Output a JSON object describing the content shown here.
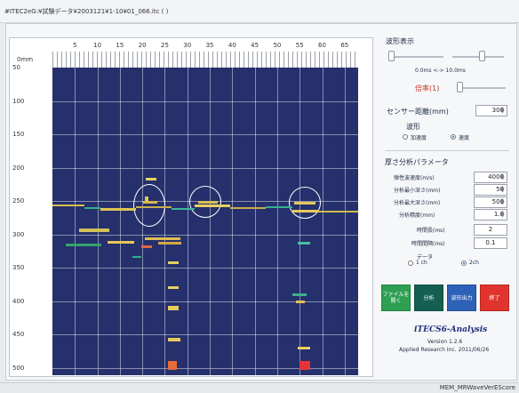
{
  "window_title": "#ITEC2eG:¥試験データ¥2003121¥1-10¥01_066.itc  ( )",
  "plot": {
    "zero_label": "0mm",
    "x_ticks": [
      "5",
      "10",
      "15",
      "20",
      "25",
      "30",
      "35",
      "40",
      "45",
      "50",
      "55",
      "60",
      "65"
    ],
    "y_ticks": [
      "50",
      "100",
      "150",
      "200",
      "250",
      "300",
      "350",
      "400",
      "450",
      "500"
    ]
  },
  "panel": {
    "waveform_display": "波形表示",
    "range_text": "0.0ms <-> 10.0ms",
    "magnification": "倍率(1)",
    "sensor_distance_label": "センサー距離(mm)",
    "sensor_distance_value": "300",
    "waveform_label": "波形",
    "wave_opt_accel": "加速度",
    "wave_opt_velocity": "速度",
    "thickness_params": "厚さ分析パラメータ",
    "params": [
      {
        "label": "弾性波速度(m/s)",
        "value": "4000"
      },
      {
        "label": "分析最小深さ(mm)",
        "value": "50"
      },
      {
        "label": "分析最大深さ(mm)",
        "value": "500"
      },
      {
        "label": "分析精度(mm)",
        "value": "1.0"
      }
    ],
    "time_length_label": "時間長(ms)",
    "time_length_value": "2",
    "time_interval_label": "時間間隔(ms)",
    "time_interval_value": "0.1",
    "data_label": "データ",
    "ch1": "1 ch",
    "ch2": "2ch",
    "buttons": {
      "open": "ファイルを開く",
      "analyze": "分析",
      "output": "波形出力",
      "exit": "終了"
    },
    "app_name": "iTECS6-Analysis",
    "version": "Version 1.2.6",
    "company": "Applied Research Inc. 2011/06/26"
  },
  "status": {
    "text": "MEM_MRWaveVerEScore"
  },
  "colors": {
    "plot_bg": "#25306c",
    "btn_open": "#2fa053",
    "btn_analyze": "#155f52",
    "btn_output": "#2e62b8",
    "btn_exit": "#e2342e"
  }
}
